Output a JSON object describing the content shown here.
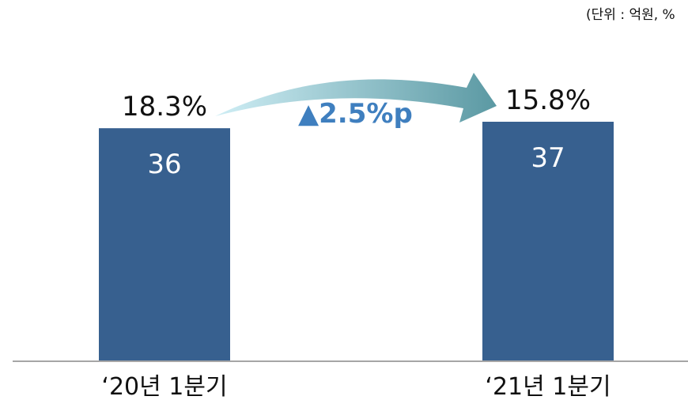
{
  "unit_note": "(단위 : 억원, %",
  "change_label": "▲2.5%p",
  "colors": {
    "bar": "#37608f",
    "axis": "#a6a6a6",
    "arrow_start": "#cfeef5",
    "arrow_end": "#5b99a3",
    "change_text": "#3f7fbf"
  },
  "chart_data": {
    "type": "bar",
    "categories": [
      "‘20년 1분기",
      "‘21년 1분기"
    ],
    "values": [
      36,
      37
    ],
    "value_labels": [
      "36",
      "37"
    ],
    "percent_labels": [
      "18.3%",
      "15.8%"
    ],
    "title": "",
    "xlabel": "",
    "ylabel": "",
    "annotation": "▲2.5%p",
    "grid": false,
    "legend": "none"
  }
}
